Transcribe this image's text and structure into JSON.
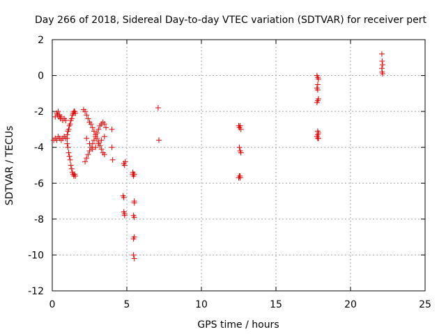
{
  "chart_data": {
    "type": "scatter",
    "title": "Day 266 of 2018, Sidereal Day-to-day VTEC variation (SDTVAR) for receiver pert",
    "xlabel": "GPS time / hours",
    "ylabel": "SDTVAR / TECUs",
    "xlim": [
      0,
      25
    ],
    "ylim": [
      -12,
      2
    ],
    "xticks": [
      0,
      5,
      10,
      15,
      20,
      25
    ],
    "yticks": [
      -12,
      -10,
      -8,
      -6,
      -4,
      -2,
      0,
      2
    ],
    "xtick_labels": [
      "0",
      "5",
      "10",
      "15",
      "20",
      "25"
    ],
    "ytick_labels": [
      "-12",
      "-10",
      "-8",
      "-6",
      "-4",
      "-2",
      "0",
      "2"
    ],
    "grid": true,
    "marker": "+",
    "color": "#e00000",
    "series": [
      {
        "name": "SDTVAR",
        "x": [
          0.2,
          0.3,
          0.35,
          0.4,
          0.45,
          0.5,
          0.55,
          0.6,
          0.7,
          0.8,
          0.9,
          0.1,
          0.2,
          0.3,
          0.4,
          0.5,
          0.6,
          0.7,
          0.8,
          0.9,
          1.0,
          1.0,
          1.05,
          1.1,
          1.15,
          1.2,
          1.25,
          1.3,
          1.35,
          1.4,
          1.45,
          1.5,
          1.55,
          1.0,
          1.05,
          1.1,
          1.15,
          1.2,
          1.25,
          1.3,
          1.35,
          1.4,
          1.45,
          1.5,
          1.55,
          2.1,
          2.2,
          2.3,
          2.4,
          2.5,
          2.6,
          2.7,
          2.8,
          2.9,
          3.0,
          3.1,
          3.2,
          3.3,
          3.4,
          3.5,
          2.2,
          2.3,
          2.4,
          2.5,
          2.6,
          2.7,
          2.8,
          2.9,
          3.0,
          3.1,
          3.2,
          3.3,
          3.4,
          3.5,
          3.6,
          2.3,
          2.5,
          2.7,
          2.9,
          3.1,
          3.3,
          3.5,
          4.0,
          4.0,
          4.05,
          4.8,
          4.85,
          4.9,
          4.75,
          4.8,
          4.8,
          4.85,
          4.85,
          5.4,
          5.45,
          5.5,
          5.45,
          5.5,
          5.5,
          5.45,
          5.45,
          5.5,
          5.4,
          5.45,
          5.5,
          5.5,
          7.1,
          7.15,
          12.5,
          12.55,
          12.6,
          12.65,
          12.55,
          12.6,
          12.65,
          12.55,
          12.6,
          12.5,
          12.6,
          17.75,
          17.8,
          17.85,
          17.8,
          17.75,
          17.8,
          17.85,
          17.8,
          17.75,
          17.8,
          17.85,
          17.8,
          17.75,
          17.85,
          17.8,
          22.1,
          22.12,
          22.15,
          22.1,
          22.12,
          22.15
        ],
        "y": [
          -2.3,
          -2.1,
          -2.2,
          -2.0,
          -2.3,
          -2.2,
          -2.4,
          -2.3,
          -2.5,
          -2.4,
          -2.5,
          -3.6,
          -3.5,
          -3.6,
          -3.4,
          -3.5,
          -3.6,
          -3.5,
          -3.4,
          -3.5,
          -3.5,
          -3.8,
          -4.0,
          -4.3,
          -4.5,
          -4.7,
          -5.0,
          -5.2,
          -5.4,
          -5.5,
          -5.6,
          -5.5,
          -5.6,
          -3.3,
          -3.1,
          -3.0,
          -2.8,
          -2.7,
          -2.5,
          -2.4,
          -2.2,
          -2.1,
          -2.0,
          -2.0,
          -2.1,
          -1.9,
          -2.0,
          -2.2,
          -2.4,
          -2.6,
          -2.7,
          -2.9,
          -3.1,
          -3.3,
          -3.5,
          -3.7,
          -3.9,
          -4.1,
          -4.3,
          -4.4,
          -4.8,
          -4.6,
          -4.4,
          -4.2,
          -4.0,
          -3.8,
          -3.6,
          -3.4,
          -3.2,
          -3.0,
          -2.8,
          -2.7,
          -2.6,
          -2.7,
          -2.9,
          -3.5,
          -3.8,
          -4.1,
          -4.0,
          -3.8,
          -3.6,
          -3.4,
          -3.0,
          -4.0,
          -4.7,
          -4.9,
          -5.0,
          -4.8,
          -6.7,
          -6.8,
          -7.6,
          -7.7,
          -7.8,
          -5.4,
          -5.5,
          -7.0,
          -7.8,
          -7.9,
          -9.0,
          -9.1,
          -10.0,
          -10.2,
          -5.5,
          -5.6,
          -5.5,
          -7.1,
          -1.8,
          -3.6,
          -2.8,
          -2.9,
          -2.8,
          -3.0,
          -4.0,
          -4.2,
          -4.3,
          -5.6,
          -5.7,
          -5.7,
          -5.6,
          0.0,
          -0.1,
          -0.2,
          -0.5,
          -0.7,
          -0.8,
          -1.3,
          -1.4,
          -1.5,
          -3.1,
          -3.2,
          -3.3,
          -3.4,
          -3.5,
          -3.5,
          1.2,
          0.8,
          0.6,
          0.4,
          0.2,
          0.1
        ]
      }
    ]
  }
}
